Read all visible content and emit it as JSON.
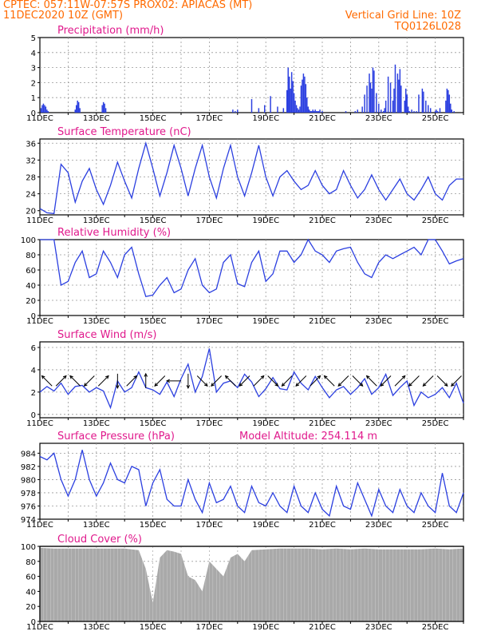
{
  "header": {
    "left_line1": "CPTEC:   057:11W-07:57S   PROX02: APIACAS (MT)",
    "left_line2": "11DEC2020 10Z (GMT)",
    "right_line1": "Vertical Grid Line: 10Z",
    "right_line2": "TQ0126L028"
  },
  "colors": {
    "header": "#ff6a00",
    "title": "#e0198c",
    "series": "#2b3fe0",
    "cloud": "#a9a9a9",
    "grid": "#999999"
  },
  "x_axis": {
    "start": "11DEC2020 10Z",
    "hours_total": 360,
    "tick_labels": [
      "11DEC",
      "13DEC",
      "15DEC",
      "17DEC",
      "19DEC",
      "21DEC",
      "23DEC",
      "25DEC"
    ]
  },
  "chart_data": [
    {
      "type": "bar",
      "title": "Precipitation (mm/h)",
      "ylim": [
        0,
        5
      ],
      "yticks": [
        "0",
        "1",
        "2",
        "3",
        "4",
        "5"
      ],
      "x_hours": [
        1,
        2,
        3,
        4,
        5,
        6,
        7,
        30,
        31,
        32,
        33,
        34,
        53,
        54,
        55,
        56,
        164,
        166,
        168,
        180,
        186,
        191,
        196,
        202,
        207,
        210,
        211,
        212,
        213,
        214,
        215,
        216,
        217,
        218,
        219,
        220,
        221,
        222,
        223,
        224,
        225,
        226,
        227,
        228,
        229,
        230,
        231,
        232,
        233,
        234,
        235,
        236,
        237,
        238,
        240,
        260,
        268,
        270,
        274,
        276,
        278,
        280,
        281,
        282,
        283,
        284,
        286,
        288,
        290,
        292,
        293,
        294,
        296,
        298,
        300,
        301,
        302,
        304,
        305,
        306,
        307,
        310,
        311,
        312,
        313,
        314,
        316,
        318,
        320,
        322,
        325,
        326,
        328,
        330,
        332,
        336,
        337,
        338,
        340,
        345,
        346,
        347,
        348,
        349,
        350,
        352
      ],
      "values": [
        0.3,
        0.5,
        0.6,
        0.5,
        0.4,
        0.2,
        0.1,
        0.2,
        0.5,
        0.8,
        0.7,
        0.3,
        0.5,
        0.7,
        0.6,
        0.3,
        0.2,
        0.1,
        0.2,
        0.9,
        0.3,
        0.5,
        1.1,
        0.4,
        0.3,
        1.5,
        3.0,
        2.4,
        1.6,
        2.7,
        2.1,
        1.3,
        0.8,
        0.5,
        0.3,
        0.2,
        0.4,
        1.8,
        2.2,
        2.6,
        2.4,
        1.9,
        1.0,
        0.4,
        0.2,
        0.1,
        0.1,
        0.2,
        0.1,
        0.2,
        0.1,
        0.1,
        0.1,
        0.2,
        0.1,
        0.1,
        0.1,
        0.2,
        0.4,
        1.2,
        1.8,
        2.6,
        2.0,
        1.6,
        3.0,
        2.8,
        1.3,
        0.6,
        0.2,
        0.1,
        0.3,
        0.8,
        2.4,
        2.0,
        0.8,
        1.6,
        3.2,
        2.6,
        2.2,
        2.9,
        1.8,
        0.8,
        1.6,
        1.2,
        0.4,
        0.1,
        0.2,
        0.1,
        0.1,
        1.2,
        1.6,
        1.4,
        0.8,
        0.5,
        0.3,
        0.1,
        0.2,
        0.1,
        0.3,
        0.8,
        1.6,
        1.5,
        1.2,
        0.6,
        0.2,
        0.1
      ]
    },
    {
      "type": "line",
      "title": "Surface Temperature (nC)",
      "ylim": [
        19,
        37
      ],
      "yticks": [
        "20",
        "24",
        "28",
        "32",
        "36"
      ],
      "x_hours": [
        0,
        6,
        12,
        18,
        24,
        30,
        36,
        42,
        48,
        54,
        60,
        66,
        72,
        78,
        84,
        90,
        96,
        102,
        108,
        114,
        120,
        126,
        132,
        138,
        144,
        150,
        156,
        162,
        168,
        174,
        180,
        186,
        192,
        198,
        204,
        210,
        216,
        222,
        228,
        234,
        240,
        246,
        252,
        258,
        264,
        270,
        276,
        282,
        288,
        294,
        300,
        306,
        312,
        318,
        324,
        330,
        336,
        342,
        348,
        354,
        360
      ],
      "values": [
        20.5,
        19.5,
        19.3,
        31.0,
        29,
        22,
        27,
        30.0,
        25,
        21.5,
        26,
        31.5,
        27,
        23,
        30,
        36.0,
        30,
        23.5,
        29,
        35.5,
        30,
        23.5,
        30,
        35.5,
        28,
        23,
        30,
        35.5,
        28,
        23.5,
        29,
        35.5,
        28,
        23.5,
        28,
        29.5,
        27,
        25.0,
        26,
        29.5,
        26,
        24.0,
        25,
        29.5,
        26,
        23.0,
        25,
        28.5,
        25,
        22.5,
        25,
        27.5,
        24,
        22.5,
        25,
        28.0,
        24,
        22.5,
        26,
        27.5,
        27.5
      ]
    },
    {
      "type": "line",
      "title": "Relative Humidity (%)",
      "ylim": [
        0,
        100
      ],
      "yticks": [
        "0",
        "20",
        "40",
        "60",
        "80",
        "100"
      ],
      "x_hours": [
        0,
        6,
        12,
        18,
        24,
        30,
        36,
        42,
        48,
        54,
        60,
        66,
        72,
        78,
        84,
        90,
        96,
        102,
        108,
        114,
        120,
        126,
        132,
        138,
        144,
        150,
        156,
        162,
        168,
        174,
        180,
        186,
        192,
        198,
        204,
        210,
        216,
        222,
        228,
        234,
        240,
        246,
        252,
        258,
        264,
        270,
        276,
        282,
        288,
        294,
        300,
        306,
        312,
        318,
        324,
        330,
        336,
        342,
        348,
        354,
        360
      ],
      "values": [
        100,
        100,
        100,
        40,
        45,
        70,
        85,
        50,
        55,
        85,
        70,
        50,
        80,
        90,
        55,
        25,
        27,
        40,
        50,
        30,
        35,
        60,
        75,
        40,
        30,
        35,
        70,
        80,
        42,
        38,
        70,
        85,
        45,
        55,
        85,
        85,
        70,
        80,
        100,
        85,
        80,
        70,
        85,
        88,
        90,
        70,
        55,
        50,
        70,
        80,
        75,
        80,
        85,
        90,
        80,
        100,
        100,
        85,
        68,
        72,
        75
      ]
    },
    {
      "type": "line",
      "title": "Surface Wind (m/s)",
      "ylim": [
        -0.3,
        6.5
      ],
      "yticks": [
        "0",
        "2",
        "4",
        "6"
      ],
      "x_hours": [
        0,
        6,
        12,
        18,
        24,
        30,
        36,
        42,
        48,
        54,
        60,
        66,
        72,
        78,
        84,
        90,
        96,
        102,
        108,
        114,
        120,
        126,
        132,
        138,
        144,
        150,
        156,
        162,
        168,
        174,
        180,
        186,
        192,
        198,
        204,
        210,
        216,
        222,
        228,
        234,
        240,
        246,
        252,
        258,
        264,
        270,
        276,
        282,
        288,
        294,
        300,
        306,
        312,
        318,
        324,
        330,
        336,
        342,
        348,
        354,
        360
      ],
      "values": [
        2.0,
        2.5,
        2.1,
        2.8,
        1.8,
        2.5,
        2.6,
        2.0,
        2.4,
        2.1,
        0.6,
        3.0,
        2.0,
        2.4,
        3.8,
        2.4,
        2.2,
        1.8,
        2.9,
        1.6,
        3.2,
        4.5,
        2.0,
        3.4,
        5.9,
        2.0,
        2.8,
        3.0,
        2.4,
        3.6,
        2.9,
        1.6,
        2.3,
        3.3,
        2.3,
        2.2,
        3.8,
        2.8,
        2.2,
        3.4,
        2.4,
        1.5,
        2.2,
        2.5,
        1.8,
        2.4,
        3.2,
        1.8,
        2.4,
        3.6,
        1.7,
        2.4,
        3.0,
        0.8,
        2.0,
        1.5,
        1.8,
        2.4,
        1.5,
        2.8,
        1.0
      ],
      "arrow_x_hours": [
        6,
        18,
        30,
        42,
        54,
        66,
        78,
        90,
        102,
        114,
        126,
        138,
        150,
        162,
        174,
        186,
        198,
        210,
        222,
        234,
        246,
        258,
        270,
        282,
        294,
        306,
        318,
        330,
        342,
        354
      ],
      "arrow_dir_deg": [
        135,
        45,
        135,
        225,
        45,
        270,
        45,
        90,
        225,
        180,
        270,
        315,
        225,
        135,
        225,
        45,
        315,
        225,
        225,
        45,
        135,
        225,
        315,
        135,
        225,
        45,
        225,
        225,
        315,
        225
      ]
    },
    {
      "type": "line",
      "title": "Surface Pressure (hPa)",
      "annotation": "Model Altitude: 254.114  m",
      "ylim": [
        974,
        985.5
      ],
      "yticks": [
        "974",
        "976",
        "978",
        "980",
        "982",
        "984"
      ],
      "x_hours": [
        0,
        6,
        12,
        18,
        24,
        30,
        36,
        42,
        48,
        54,
        60,
        66,
        72,
        78,
        84,
        90,
        96,
        102,
        108,
        114,
        120,
        126,
        132,
        138,
        144,
        150,
        156,
        162,
        168,
        174,
        180,
        186,
        192,
        198,
        204,
        210,
        216,
        222,
        228,
        234,
        240,
        246,
        252,
        258,
        264,
        270,
        276,
        282,
        288,
        294,
        300,
        306,
        312,
        318,
        324,
        330,
        336,
        342,
        348,
        354,
        360
      ],
      "values": [
        983.5,
        983,
        984,
        980,
        977.5,
        980,
        984.5,
        980,
        977.5,
        979.5,
        982.5,
        980,
        979.5,
        982,
        981.5,
        976,
        979.5,
        981.5,
        977,
        976,
        976,
        980,
        977,
        975,
        979.5,
        976.5,
        977,
        979,
        976,
        975,
        979,
        976.5,
        976,
        978,
        976,
        975,
        979,
        976,
        975,
        978,
        975.5,
        974.5,
        979,
        976,
        975.5,
        979.5,
        977,
        974.5,
        978.5,
        976,
        975,
        978.5,
        976,
        975,
        978,
        976,
        975,
        981,
        976,
        975,
        978
      ]
    },
    {
      "type": "area",
      "title": "Cloud Cover (%)",
      "ylim": [
        0,
        100
      ],
      "yticks": [
        "0",
        "20",
        "40",
        "60",
        "80",
        "100"
      ],
      "x_hours": [
        0,
        12,
        24,
        36,
        48,
        60,
        72,
        84,
        90,
        96,
        102,
        108,
        114,
        120,
        126,
        132,
        138,
        144,
        150,
        156,
        162,
        168,
        174,
        180,
        192,
        204,
        216,
        228,
        240,
        252,
        264,
        276,
        288,
        300,
        312,
        324,
        336,
        348,
        360
      ],
      "values": [
        98,
        97,
        97,
        97,
        97,
        97,
        97,
        95,
        70,
        25,
        85,
        95,
        93,
        90,
        60,
        55,
        40,
        80,
        70,
        60,
        85,
        90,
        80,
        95,
        96,
        97,
        97,
        97,
        96,
        97,
        96,
        97,
        96,
        96,
        96,
        96,
        97,
        96,
        97
      ]
    }
  ]
}
